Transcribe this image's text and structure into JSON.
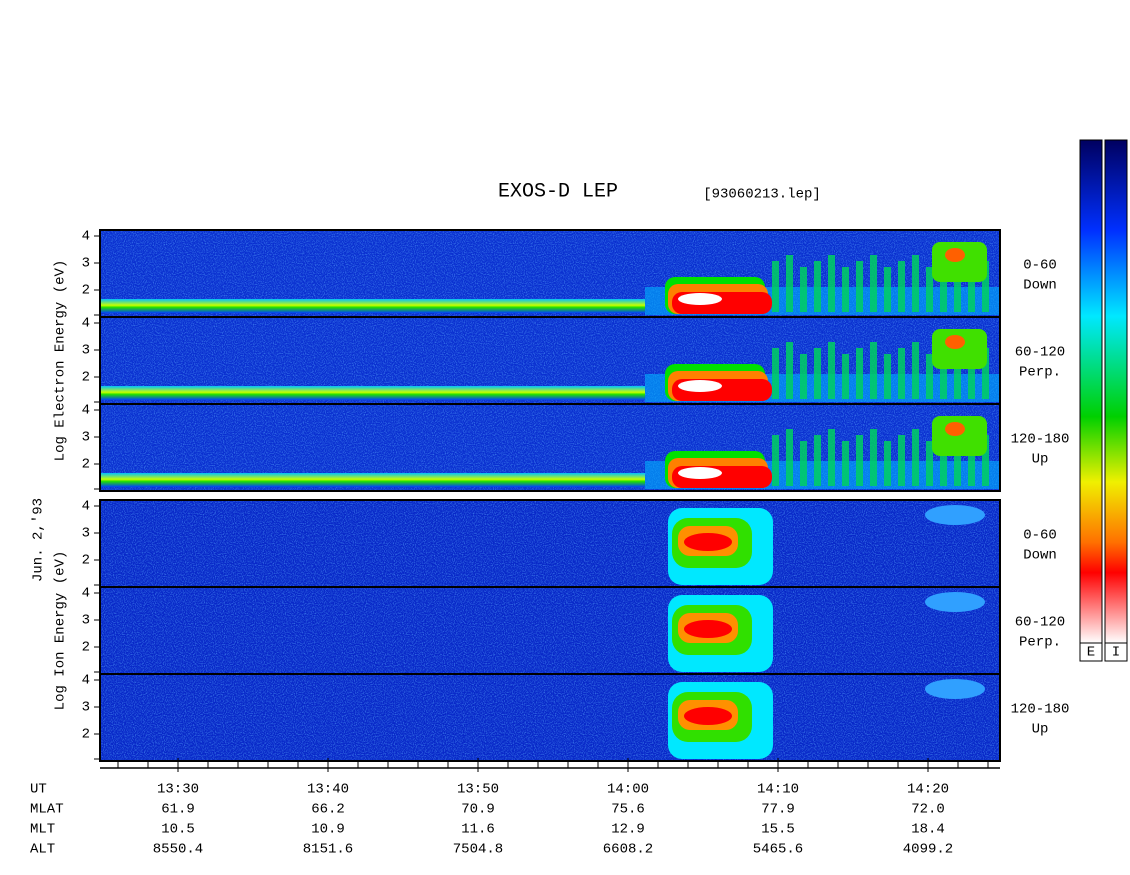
{
  "title": "EXOS-D LEP",
  "file": "[93060213.lep]",
  "date_label": "Jun. 2,'93",
  "electron": {
    "ylabel": "Log  Electron  Energy (eV)",
    "yticks": [
      "4",
      "3",
      "2"
    ],
    "panels": [
      {
        "angle": "0-60",
        "dir": "Down"
      },
      {
        "angle": "60-120",
        "dir": "Perp."
      },
      {
        "angle": "120-180",
        "dir": "Up"
      }
    ]
  },
  "ion": {
    "ylabel": "Log  Ion  Energy (eV)",
    "yticks": [
      "4",
      "3",
      "2"
    ],
    "panels": [
      {
        "angle": "0-60",
        "dir": "Down"
      },
      {
        "angle": "60-120",
        "dir": "Perp."
      },
      {
        "angle": "120-180",
        "dir": "Up"
      }
    ]
  },
  "time_labels": [
    "13:30",
    "13:40",
    "13:50",
    "14:00",
    "14:10",
    "14:20"
  ],
  "ephemeris": [
    {
      "name": "UT",
      "values": []
    },
    {
      "name": "MLAT",
      "values": [
        "61.9",
        "66.2",
        "70.9",
        "75.6",
        "77.9",
        "72.0"
      ]
    },
    {
      "name": "MLT",
      "values": [
        "10.5",
        "10.9",
        "11.6",
        "12.9",
        "15.5",
        "18.4"
      ]
    },
    {
      "name": "ALT",
      "values": [
        "8550.4",
        "8151.6",
        "7504.8",
        "6608.2",
        "5465.6",
        "4099.2"
      ]
    }
  ],
  "colorbar_labels": [
    "E",
    "I"
  ]
}
